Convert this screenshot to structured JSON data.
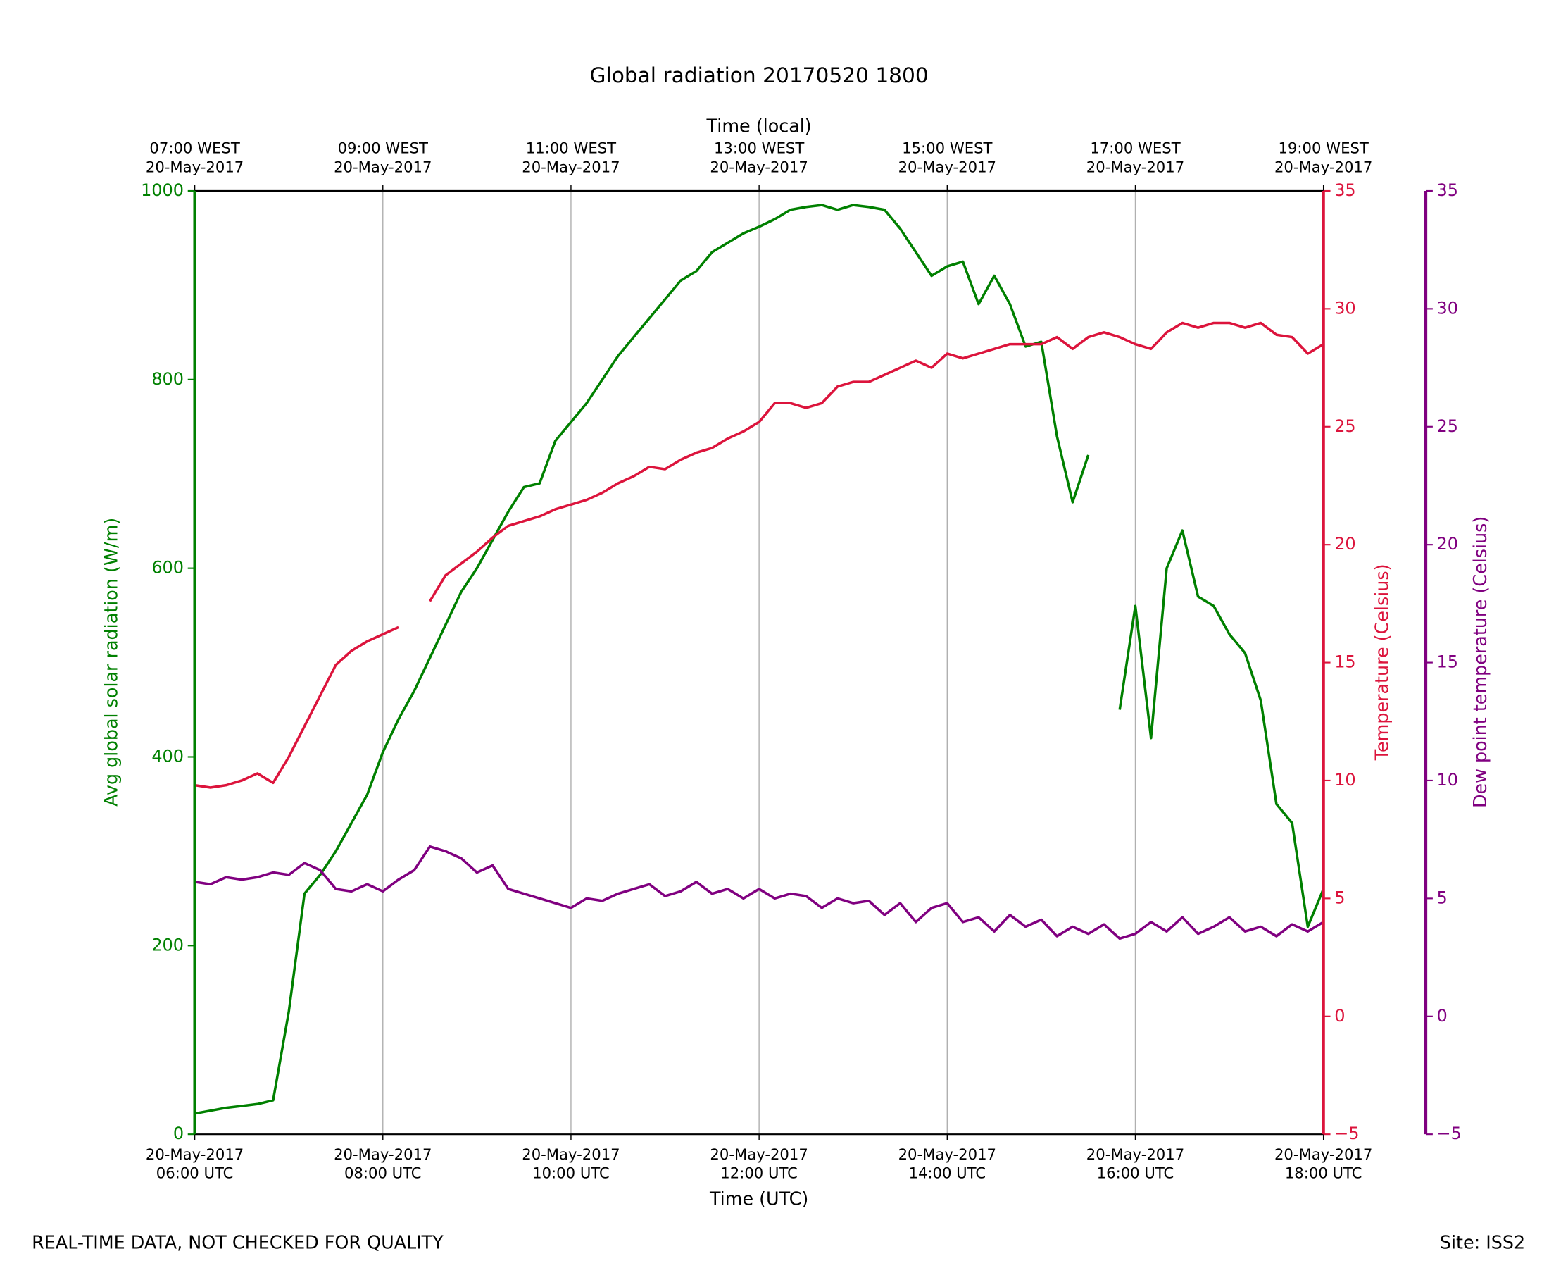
{
  "chart_data": {
    "type": "line",
    "title": "Global radiation 20170520 1800",
    "xlabel": "Time (UTC)",
    "x2label": "Time (local)",
    "ylabel": "Avg global solar radiation (W/m)",
    "y2label": "Temperature (Celsius)",
    "y3label": "Dew point temperature (Celsius)",
    "footer_left": "REAL-TIME DATA, NOT CHECKED FOR QUALITY",
    "footer_right": "Site: ISS2",
    "grid": true,
    "xlim": [
      "2017-05-20T06:00",
      "2017-05-20T18:00"
    ],
    "xticks": [
      {
        "value": "2017-05-20T06:00",
        "label": "20-May-2017\n06:00 UTC"
      },
      {
        "value": "2017-05-20T08:00",
        "label": "20-May-2017\n08:00 UTC"
      },
      {
        "value": "2017-05-20T10:00",
        "label": "20-May-2017\n10:00 UTC"
      },
      {
        "value": "2017-05-20T12:00",
        "label": "20-May-2017\n12:00 UTC"
      },
      {
        "value": "2017-05-20T14:00",
        "label": "20-May-2017\n14:00 UTC"
      },
      {
        "value": "2017-05-20T16:00",
        "label": "20-May-2017\n16:00 UTC"
      },
      {
        "value": "2017-05-20T18:00",
        "label": "20-May-2017\n18:00 UTC"
      }
    ],
    "x2ticks": [
      {
        "value": "2017-05-20T06:00",
        "label": "07:00 WEST\n20-May-2017"
      },
      {
        "value": "2017-05-20T08:00",
        "label": "09:00 WEST\n20-May-2017"
      },
      {
        "value": "2017-05-20T10:00",
        "label": "11:00 WEST\n20-May-2017"
      },
      {
        "value": "2017-05-20T12:00",
        "label": "13:00 WEST\n20-May-2017"
      },
      {
        "value": "2017-05-20T14:00",
        "label": "15:00 WEST\n20-May-2017"
      },
      {
        "value": "2017-05-20T16:00",
        "label": "17:00 WEST\n20-May-2017"
      },
      {
        "value": "2017-05-20T18:00",
        "label": "19:00 WEST\n20-May-2017"
      }
    ],
    "ylim": [
      0,
      1000
    ],
    "yticks": [
      0,
      200,
      400,
      600,
      800,
      1000
    ],
    "y2lim": [
      -5,
      35
    ],
    "y2ticks": [
      {
        "value": -5,
        "label": "−5"
      },
      0,
      5,
      10,
      15,
      20,
      25,
      30,
      35
    ],
    "y3lim": [
      -5,
      35
    ],
    "y3ticks": [
      {
        "value": -5,
        "label": "−5"
      },
      0,
      5,
      10,
      15,
      20,
      25,
      30,
      35
    ],
    "x": [
      "2017-05-20T06:00",
      "2017-05-20T06:10",
      "2017-05-20T06:20",
      "2017-05-20T06:30",
      "2017-05-20T06:40",
      "2017-05-20T06:50",
      "2017-05-20T07:00",
      "2017-05-20T07:10",
      "2017-05-20T07:20",
      "2017-05-20T07:30",
      "2017-05-20T07:40",
      "2017-05-20T07:50",
      "2017-05-20T08:00",
      "2017-05-20T08:10",
      "2017-05-20T08:20",
      "2017-05-20T08:30",
      "2017-05-20T08:40",
      "2017-05-20T08:50",
      "2017-05-20T09:00",
      "2017-05-20T09:10",
      "2017-05-20T09:20",
      "2017-05-20T09:30",
      "2017-05-20T09:40",
      "2017-05-20T09:50",
      "2017-05-20T10:00",
      "2017-05-20T10:10",
      "2017-05-20T10:20",
      "2017-05-20T10:30",
      "2017-05-20T10:40",
      "2017-05-20T10:50",
      "2017-05-20T11:00",
      "2017-05-20T11:10",
      "2017-05-20T11:20",
      "2017-05-20T11:30",
      "2017-05-20T11:40",
      "2017-05-20T11:50",
      "2017-05-20T12:00",
      "2017-05-20T12:10",
      "2017-05-20T12:20",
      "2017-05-20T12:30",
      "2017-05-20T12:40",
      "2017-05-20T12:50",
      "2017-05-20T13:00",
      "2017-05-20T13:10",
      "2017-05-20T13:20",
      "2017-05-20T13:30",
      "2017-05-20T13:40",
      "2017-05-20T13:50",
      "2017-05-20T14:00",
      "2017-05-20T14:10",
      "2017-05-20T14:20",
      "2017-05-20T14:30",
      "2017-05-20T14:40",
      "2017-05-20T14:50",
      "2017-05-20T15:00",
      "2017-05-20T15:10",
      "2017-05-20T15:20",
      "2017-05-20T15:30",
      "2017-05-20T15:40",
      "2017-05-20T15:50",
      "2017-05-20T16:00",
      "2017-05-20T16:10",
      "2017-05-20T16:20",
      "2017-05-20T16:30",
      "2017-05-20T16:40",
      "2017-05-20T16:50",
      "2017-05-20T17:00",
      "2017-05-20T17:10",
      "2017-05-20T17:20",
      "2017-05-20T17:30",
      "2017-05-20T17:40",
      "2017-05-20T17:50",
      "2017-05-20T18:00"
    ],
    "series": [
      {
        "name": "Avg global solar radiation",
        "color": "#008000",
        "axis": "y",
        "values": [
          22,
          25,
          28,
          30,
          32,
          36,
          130,
          255,
          275,
          300,
          330,
          360,
          405,
          440,
          470,
          505,
          540,
          575,
          600,
          630,
          660,
          686,
          690,
          735,
          755,
          775,
          800,
          825,
          845,
          865,
          885,
          905,
          915,
          935,
          945,
          955,
          962,
          970,
          980,
          983,
          985,
          980,
          985,
          983,
          980,
          960,
          935,
          910,
          920,
          925,
          880,
          910,
          880,
          835,
          840,
          740,
          670,
          720,
          null,
          450,
          560,
          420,
          600,
          640,
          570,
          560,
          530,
          510,
          460,
          350,
          330,
          220,
          260
        ]
      },
      {
        "name": "Temperature",
        "color": "#dc143c",
        "axis": "y2",
        "values": [
          9.8,
          9.7,
          9.8,
          10,
          10.3,
          9.9,
          11,
          12.3,
          13.6,
          14.9,
          15.5,
          15.9,
          16.2,
          16.5,
          null,
          17.6,
          18.7,
          19.2,
          19.7,
          20.3,
          20.8,
          21,
          21.2,
          21.5,
          21.7,
          21.9,
          22.2,
          22.6,
          22.9,
          23.3,
          23.2,
          23.6,
          23.9,
          24.1,
          24.5,
          24.8,
          25.2,
          26,
          26,
          25.8,
          26,
          26.7,
          26.9,
          26.9,
          27.2,
          27.5,
          27.8,
          27.5,
          28.1,
          27.9,
          28.1,
          28.3,
          28.5,
          28.5,
          28.5,
          28.8,
          28.3,
          28.8,
          29,
          28.8,
          28.5,
          28.3,
          29,
          29.4,
          29.2,
          29.4,
          29.4,
          29.2,
          29.4,
          28.9,
          28.8,
          28.1,
          28.5
        ]
      },
      {
        "name": "Dew point temperature",
        "color": "#800080",
        "axis": "y3",
        "values": [
          5.7,
          5.6,
          5.9,
          5.8,
          5.9,
          6.1,
          6,
          6.5,
          6.2,
          5.4,
          5.3,
          5.6,
          5.3,
          5.8,
          6.2,
          7.2,
          7,
          6.7,
          6.1,
          6.4,
          5.4,
          5.2,
          5,
          4.8,
          4.6,
          5,
          4.9,
          5.2,
          5.4,
          5.6,
          5.1,
          5.3,
          5.7,
          5.2,
          5.4,
          5,
          5.4,
          5,
          5.2,
          5.1,
          4.6,
          5,
          4.8,
          4.9,
          4.3,
          4.8,
          4,
          4.6,
          4.8,
          4,
          4.2,
          3.6,
          4.3,
          3.8,
          4.1,
          3.4,
          3.8,
          3.5,
          3.9,
          3.3,
          3.5,
          4,
          3.6,
          4.2,
          3.5,
          3.8,
          4.2,
          3.6,
          3.8,
          3.4,
          3.9,
          3.6,
          4
        ]
      }
    ]
  }
}
